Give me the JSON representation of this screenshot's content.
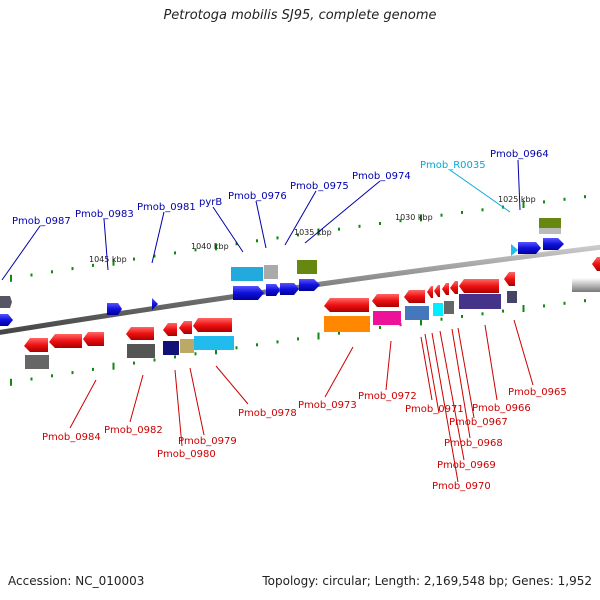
{
  "title": "Petrotoga mobilis SJ95, complete genome",
  "footer": {
    "accession": "Accession: NC_010003",
    "topology": "Topology: circular; Length: 2,169,548 bp; Genes: 1,952"
  },
  "scale_ticks": [
    {
      "position_kbp": 1045,
      "label": "1045 kbp"
    },
    {
      "position_kbp": 1040,
      "label": "1040 kbp"
    },
    {
      "position_kbp": 1035,
      "label": "1035 kbp"
    },
    {
      "position_kbp": 1030,
      "label": "1030 kbp"
    },
    {
      "position_kbp": 1025,
      "label": "1025 kbp"
    }
  ],
  "top_labels": [
    {
      "text": "Pmob_0987"
    },
    {
      "text": "Pmob_0983"
    },
    {
      "text": "Pmob_0981"
    },
    {
      "text": "pyrB"
    },
    {
      "text": "Pmob_0976"
    },
    {
      "text": "Pmob_0975"
    },
    {
      "text": "Pmob_0974"
    },
    {
      "text": "Pmob_R0035"
    },
    {
      "text": "Pmob_0964"
    }
  ],
  "bottom_labels": [
    {
      "text": "Pmob_0984"
    },
    {
      "text": "Pmob_0982"
    },
    {
      "text": "Pmob_0979"
    },
    {
      "text": "Pmob_0980"
    },
    {
      "text": "Pmob_0978"
    },
    {
      "text": "Pmob_0973"
    },
    {
      "text": "Pmob_0972"
    },
    {
      "text": "Pmob_0971"
    },
    {
      "text": "Pmob_0966"
    },
    {
      "text": "Pmob_0967"
    },
    {
      "text": "Pmob_0968"
    },
    {
      "text": "Pmob_0969"
    },
    {
      "text": "Pmob_0970"
    },
    {
      "text": "Pmob_0965"
    }
  ],
  "colors": {
    "forward_gene": "#1010dd",
    "reverse_gene": "#ee1111",
    "rna_gene": "#22bbee",
    "label_forward": "#0000aa",
    "label_reverse": "#cc0000",
    "label_rna": "#00aadd",
    "backbone": "#888888",
    "tick": "#118811"
  }
}
